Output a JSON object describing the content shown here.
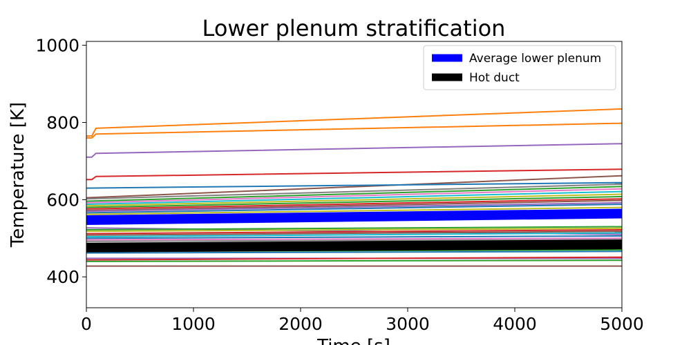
{
  "chart_data": {
    "type": "line",
    "title": "Lower plenum stratification",
    "xlabel": "Time [s]",
    "ylabel": "Temperature [K]",
    "xlim": [
      0,
      5000
    ],
    "ylim": [
      320,
      1010
    ],
    "xticks": [
      0,
      1000,
      2000,
      3000,
      4000,
      5000
    ],
    "yticks": [
      400,
      600,
      800,
      1000
    ],
    "grid": false,
    "legend_position": "top-right",
    "legend": [
      {
        "label": "Average lower plenum",
        "color": "#0000ff"
      },
      {
        "label": "Hot duct",
        "color": "#000000"
      }
    ],
    "series": [
      {
        "color": "#ff7f0e",
        "x": [
          0,
          50,
          90,
          5000
        ],
        "y": [
          765,
          765,
          785,
          835
        ],
        "linewidth": 2
      },
      {
        "color": "#ff7f0e",
        "x": [
          0,
          50,
          90,
          5000
        ],
        "y": [
          760,
          760,
          770,
          798
        ],
        "linewidth": 2
      },
      {
        "color": "#9467bd",
        "x": [
          0,
          50,
          90,
          5000
        ],
        "y": [
          710,
          710,
          720,
          745
        ],
        "linewidth": 2
      },
      {
        "color": "#d62728",
        "x": [
          0,
          50,
          90,
          5000
        ],
        "y": [
          652,
          652,
          660,
          679
        ],
        "linewidth": 2
      },
      {
        "color": "#8c564b",
        "x": [
          0,
          5000
        ],
        "y": [
          605,
          662
        ],
        "linewidth": 2
      },
      {
        "color": "#1f77b4",
        "x": [
          0,
          5000
        ],
        "y": [
          630,
          644
        ],
        "linewidth": 2
      },
      {
        "color": "#7f7f7f",
        "x": [
          0,
          5000
        ],
        "y": [
          602,
          640
        ],
        "linewidth": 2
      },
      {
        "color": "#2ca02c",
        "x": [
          0,
          5000
        ],
        "y": [
          596,
          634
        ],
        "linewidth": 2
      },
      {
        "color": "#e377c2",
        "x": [
          0,
          5000
        ],
        "y": [
          592,
          628
        ],
        "linewidth": 2
      },
      {
        "color": "#17becf",
        "x": [
          0,
          5000
        ],
        "y": [
          588,
          621
        ],
        "linewidth": 2
      },
      {
        "color": "#bcbd22",
        "x": [
          0,
          5000
        ],
        "y": [
          584,
          614
        ],
        "linewidth": 2
      },
      {
        "color": "#2ca02c",
        "x": [
          0,
          5000
        ],
        "y": [
          580,
          608
        ],
        "linewidth": 2
      },
      {
        "color": "#d62728",
        "x": [
          0,
          5000
        ],
        "y": [
          576,
          602
        ],
        "linewidth": 2
      },
      {
        "color": "#8c564b",
        "x": [
          0,
          5000
        ],
        "y": [
          572,
          598
        ],
        "linewidth": 2
      },
      {
        "color": "#9467bd",
        "x": [
          0,
          5000
        ],
        "y": [
          570,
          592
        ],
        "linewidth": 2
      },
      {
        "color": "#1f77b4",
        "x": [
          0,
          5000
        ],
        "y": [
          566,
          588
        ],
        "linewidth": 2
      },
      {
        "color": "#bcbd22",
        "x": [
          0,
          5000
        ],
        "y": [
          562,
          580
        ],
        "linewidth": 2
      },
      {
        "color": "#ff7f0e",
        "x": [
          0,
          5000
        ],
        "y": [
          558,
          574
        ],
        "linewidth": 2
      },
      {
        "color": "#9467bd",
        "x": [
          0,
          5000
        ],
        "y": [
          527,
          510
        ],
        "linewidth": 2
      },
      {
        "color": "#2ca02c",
        "x": [
          0,
          5000
        ],
        "y": [
          522,
          530
        ],
        "linewidth": 2
      },
      {
        "color": "#bcbd22",
        "x": [
          0,
          5000
        ],
        "y": [
          518,
          526
        ],
        "linewidth": 2
      },
      {
        "color": "#d62728",
        "x": [
          0,
          5000
        ],
        "y": [
          512,
          522
        ],
        "linewidth": 2
      },
      {
        "color": "#8c564b",
        "x": [
          0,
          5000
        ],
        "y": [
          508,
          518
        ],
        "linewidth": 2
      },
      {
        "color": "#17becf",
        "x": [
          0,
          5000
        ],
        "y": [
          504,
          514
        ],
        "linewidth": 2
      },
      {
        "color": "#1f77b4",
        "x": [
          0,
          5000
        ],
        "y": [
          500,
          506
        ],
        "linewidth": 2
      },
      {
        "color": "#e377c2",
        "x": [
          0,
          5000
        ],
        "y": [
          496,
          500
        ],
        "linewidth": 2
      },
      {
        "color": "#7f7f7f",
        "x": [
          0,
          5000
        ],
        "y": [
          492,
          496
        ],
        "linewidth": 2
      },
      {
        "color": "#2ca02c",
        "x": [
          0,
          5000
        ],
        "y": [
          466,
          470
        ],
        "linewidth": 2
      },
      {
        "color": "#1f77b4",
        "x": [
          0,
          5000
        ],
        "y": [
          462,
          466
        ],
        "linewidth": 2
      },
      {
        "color": "#9467bd",
        "x": [
          0,
          5000
        ],
        "y": [
          448,
          448
        ],
        "linewidth": 2
      },
      {
        "color": "#d62728",
        "x": [
          0,
          5000
        ],
        "y": [
          444,
          451
        ],
        "linewidth": 2
      },
      {
        "color": "#2ca02c",
        "x": [
          0,
          5000
        ],
        "y": [
          440,
          443
        ],
        "linewidth": 2
      },
      {
        "color": "#8c564b",
        "x": [
          0,
          5000
        ],
        "y": [
          428,
          428
        ],
        "linewidth": 2
      },
      {
        "name": "Average lower plenum",
        "color": "#0000ff",
        "x": [
          0,
          5000
        ],
        "y": [
          547,
          564
        ],
        "linewidth": 14
      },
      {
        "name": "Hot duct",
        "color": "#000000",
        "x": [
          0,
          5000
        ],
        "y": [
          476,
          484
        ],
        "linewidth": 14
      }
    ]
  }
}
